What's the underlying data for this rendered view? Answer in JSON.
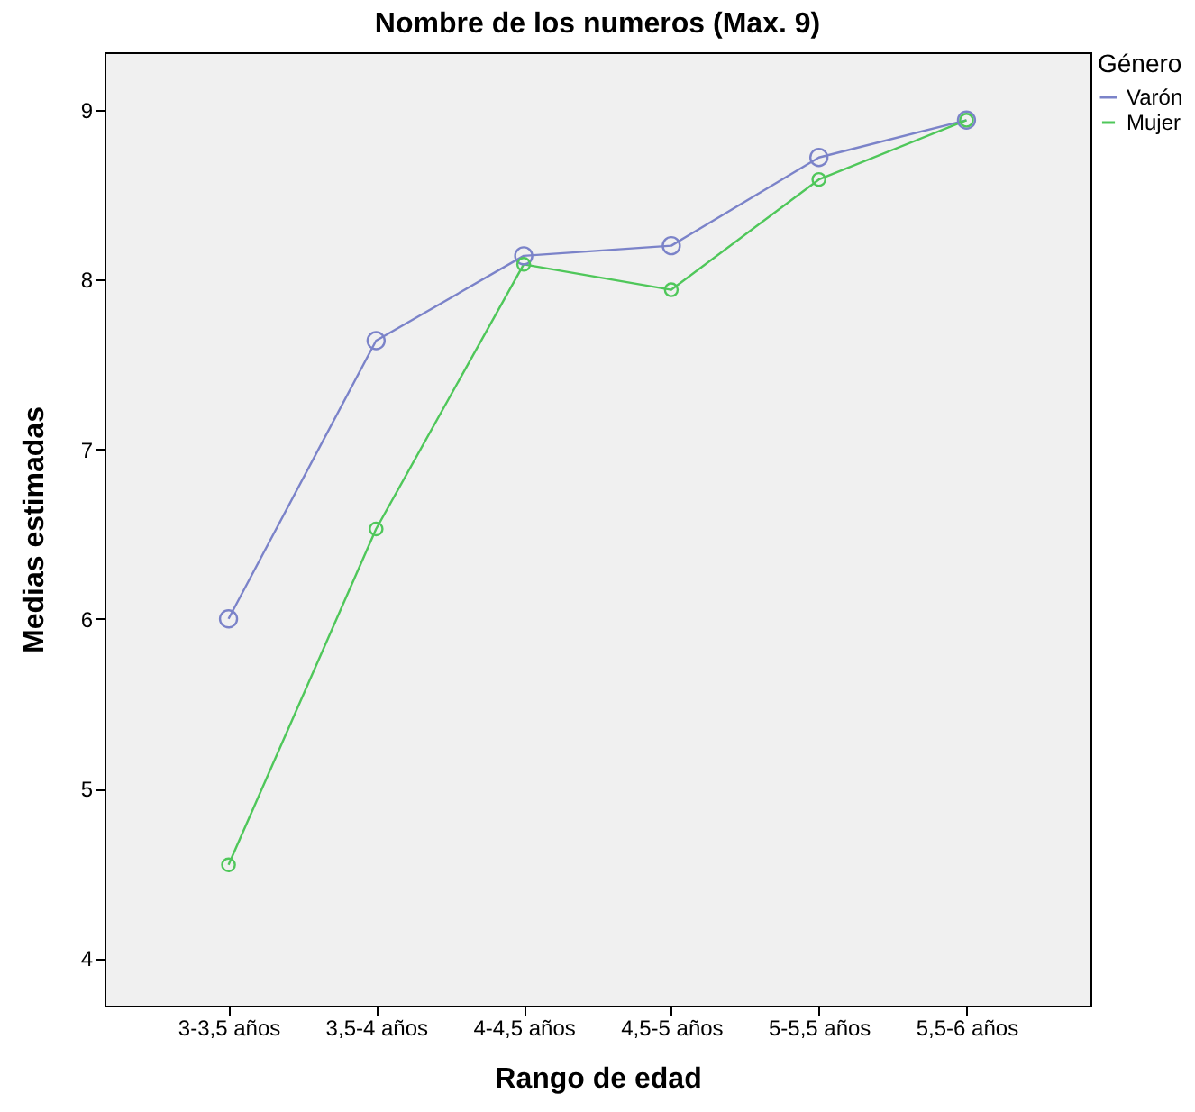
{
  "chart_data": {
    "type": "line",
    "title": "Nombre de los numeros (Max. 9)",
    "xlabel": "Rango de edad",
    "ylabel": "Medias estimadas",
    "legend_title": "Género",
    "categories": [
      "3-3,5 años",
      "3,5-4 años",
      "4-4,5 años",
      "4,5-5 años",
      "5-5,5 años",
      "5,5-6 años"
    ],
    "series": [
      {
        "name": "Varón",
        "color": "#7b83c9",
        "values": [
          6.0,
          7.64,
          8.14,
          8.2,
          8.72,
          8.94
        ]
      },
      {
        "name": "Mujer",
        "color": "#4fc75a",
        "values": [
          4.55,
          6.53,
          8.09,
          7.94,
          8.59,
          8.94
        ]
      }
    ],
    "ylim": [
      3.72,
      9.34
    ],
    "yticks": [
      4,
      5,
      6,
      7,
      8,
      9
    ],
    "grid": false,
    "legend": "top right",
    "marker": "circle",
    "line_style": "solid"
  }
}
